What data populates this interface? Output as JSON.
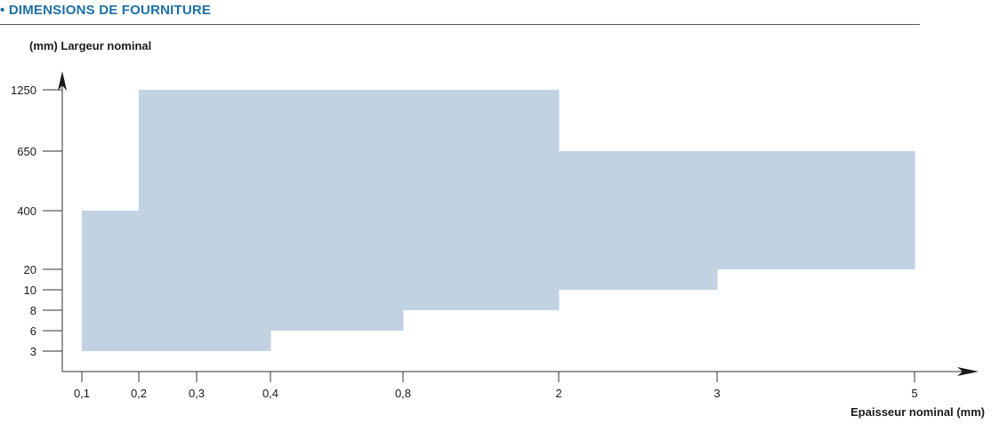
{
  "header": {
    "title": "• DIMENSIONS DE FOURNITURE",
    "accent_color": "#1e6fa6"
  },
  "chart_data": {
    "type": "area",
    "ylabel": "(mm)  Largeur nominal",
    "xlabel": "Epaisseur nominal  (mm)",
    "x_ticks": [
      "0,1",
      "0,2",
      "0,3",
      "0,4",
      "0,8",
      "2",
      "3",
      "5"
    ],
    "y_ticks": [
      "3",
      "6",
      "8",
      "10",
      "20",
      "400",
      "650",
      "1250"
    ],
    "scale": "categorical (non-linear) on both axes",
    "fill_color": "#c1d3e3",
    "region_steps": [
      {
        "x_from": "0,1",
        "x_to": "0,2",
        "y_min": "3",
        "y_max": "400"
      },
      {
        "x_from": "0,2",
        "x_to": "0,4",
        "y_min": "3",
        "y_max": "1250"
      },
      {
        "x_from": "0,4",
        "x_to": "0,8",
        "y_min": "6",
        "y_max": "1250"
      },
      {
        "x_from": "0,8",
        "x_to": "2",
        "y_min": "8",
        "y_max": "1250"
      },
      {
        "x_from": "2",
        "x_to": "3",
        "y_min": "10",
        "y_max": "650"
      },
      {
        "x_from": "3",
        "x_to": "5",
        "y_min": "20",
        "y_max": "650"
      }
    ]
  }
}
